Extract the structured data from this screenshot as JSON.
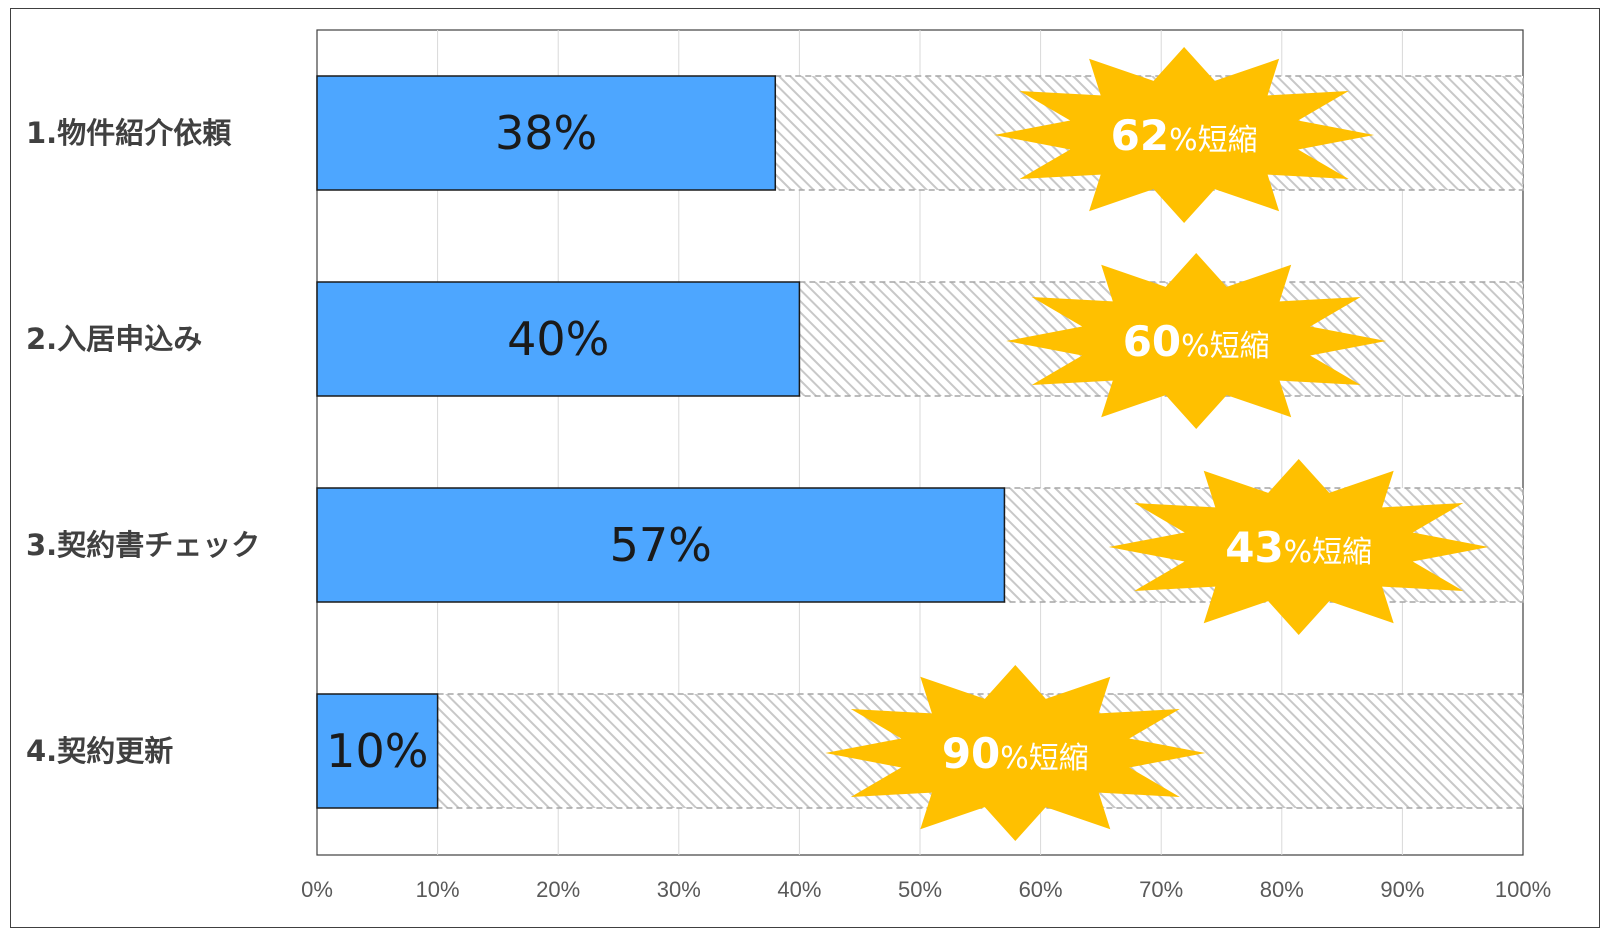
{
  "chart_data": {
    "type": "bar",
    "orientation": "horizontal",
    "stacked": true,
    "categories": [
      "1.物件紹介依頼",
      "2.入居申込み",
      "3.契約書チェック",
      "4.契約更新"
    ],
    "series": [
      {
        "values": [
          38,
          40,
          57,
          10
        ],
        "color": "#4da6ff"
      },
      {
        "values": [
          62,
          60,
          43,
          90
        ],
        "color": "#d9d9d9",
        "pattern": "diagonal-hatch"
      }
    ],
    "bar_labels": [
      "38%",
      "40%",
      "57%",
      "10%"
    ],
    "callouts": [
      {
        "value": "62",
        "suffix": "%短縮"
      },
      {
        "value": "60",
        "suffix": "%短縮"
      },
      {
        "value": "43",
        "suffix": "%短縮"
      },
      {
        "value": "90",
        "suffix": "%短縮"
      }
    ],
    "callout_color": "#ffc000",
    "xlim": [
      0,
      100
    ],
    "xticks": [
      "0%",
      "10%",
      "20%",
      "30%",
      "40%",
      "50%",
      "60%",
      "70%",
      "80%",
      "90%",
      "100%"
    ],
    "grid": "vertical",
    "legend": "none"
  }
}
